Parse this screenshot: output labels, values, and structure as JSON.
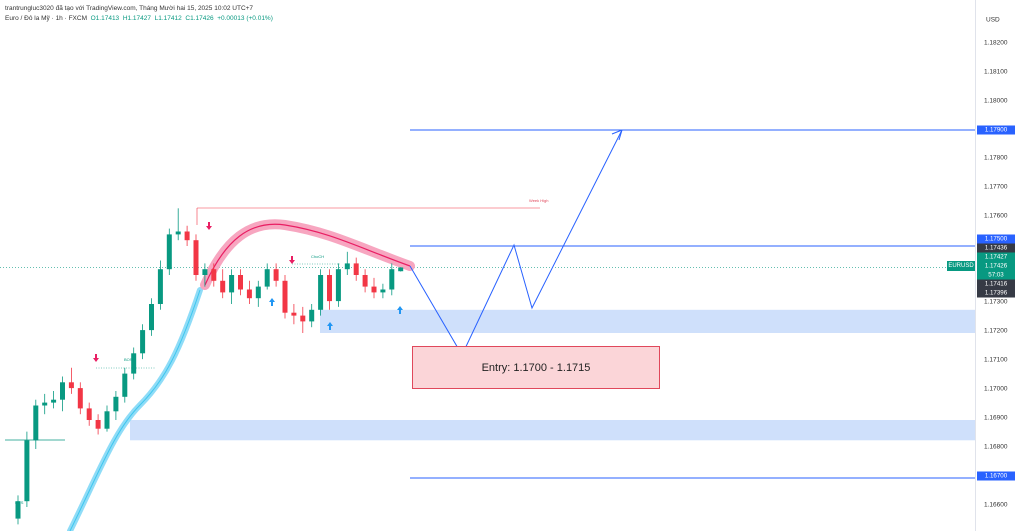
{
  "header": {
    "line1": "trantrungluc3020 đã tạo với TradingView.com, Tháng Mười hai 15, 2025 10:02 UTC+7",
    "symbol": "Euro / Đô la Mỹ · 1h · FXCM",
    "open": "O1.17413",
    "high": "H1.17427",
    "low": "L1.17412",
    "close": "C1.17426",
    "change": "+0.00013 (+0.01%)"
  },
  "axis": {
    "currency": "USD",
    "ticks": [
      "1.18200",
      "1.18100",
      "1.18000",
      "1.17800",
      "1.17700",
      "1.17600",
      "1.17300",
      "1.17200",
      "1.17100",
      "1.17000",
      "1.16900",
      "1.16800",
      "1.16600"
    ]
  },
  "price_tags": {
    "level_top": "1.17900",
    "level_mid": "1.17500",
    "p1": "1.17436",
    "p2": "1.17427",
    "p3": "1.17426",
    "countdown": "57:03",
    "p4": "1.17416",
    "p5": "1.17396",
    "level_bottom": "1.16700"
  },
  "symbol_label": "EURUSD",
  "entry": {
    "text": "Entry: 1.1700 - 1.1715"
  },
  "annotations": {
    "high_label": "Week High",
    "choch": "ChoCH",
    "bos1": "BOS",
    "bos2": "BOS"
  },
  "colors": {
    "bull": "#089981",
    "bear": "#f23645",
    "level_line": "#2962ff",
    "zone": "#cfe0fb",
    "entry_fill": "#fbd5d8",
    "entry_border": "#e0485b",
    "band_pink": "#f7a6c0",
    "band_blue": "#8fdcf7"
  },
  "chart_data": {
    "type": "candlestick",
    "series": [
      {
        "values": [
          [
            1.1656,
            1.1664,
            1.1654,
            1.1662
          ],
          [
            1.1662,
            1.1686,
            1.166,
            1.1683
          ],
          [
            1.1683,
            1.1697,
            1.168,
            1.1695
          ],
          [
            1.1695,
            1.1699,
            1.1692,
            1.1696
          ],
          [
            1.1696,
            1.17,
            1.1694,
            1.1697
          ],
          [
            1.1697,
            1.1705,
            1.1693,
            1.1703
          ],
          [
            1.1703,
            1.1708,
            1.1699,
            1.1701
          ],
          [
            1.1701,
            1.1703,
            1.1692,
            1.1694
          ],
          [
            1.1694,
            1.1696,
            1.1688,
            1.169
          ],
          [
            1.169,
            1.1692,
            1.1685,
            1.1687
          ],
          [
            1.1687,
            1.1695,
            1.1686,
            1.1693
          ],
          [
            1.1693,
            1.17,
            1.169,
            1.1698
          ],
          [
            1.1698,
            1.1708,
            1.1696,
            1.1706
          ],
          [
            1.1706,
            1.1715,
            1.1704,
            1.1713
          ],
          [
            1.1713,
            1.1723,
            1.1711,
            1.1721
          ],
          [
            1.1721,
            1.1732,
            1.1719,
            1.173
          ],
          [
            1.173,
            1.1745,
            1.1728,
            1.1742
          ],
          [
            1.1742,
            1.1756,
            1.174,
            1.1754
          ],
          [
            1.1754,
            1.1763,
            1.1752,
            1.1755
          ],
          [
            1.1755,
            1.1757,
            1.175,
            1.1752
          ],
          [
            1.1752,
            1.1754,
            1.1738,
            1.174
          ],
          [
            1.174,
            1.1744,
            1.1736,
            1.1742
          ],
          [
            1.1742,
            1.1744,
            1.1736,
            1.1738
          ],
          [
            1.1738,
            1.1742,
            1.1732,
            1.1734
          ],
          [
            1.1734,
            1.1742,
            1.173,
            1.174
          ],
          [
            1.174,
            1.1742,
            1.1733,
            1.1735
          ],
          [
            1.1735,
            1.1738,
            1.173,
            1.1732
          ],
          [
            1.1732,
            1.1738,
            1.1729,
            1.1736
          ],
          [
            1.1736,
            1.1744,
            1.1735,
            1.1742
          ],
          [
            1.1742,
            1.1744,
            1.1736,
            1.1738
          ],
          [
            1.1738,
            1.174,
            1.1725,
            1.1727
          ],
          [
            1.1727,
            1.173,
            1.1723,
            1.1726
          ],
          [
            1.1726,
            1.1729,
            1.172,
            1.1724
          ],
          [
            1.1724,
            1.173,
            1.1722,
            1.1728
          ],
          [
            1.1728,
            1.1742,
            1.1726,
            1.174
          ],
          [
            1.174,
            1.1742,
            1.1728,
            1.1731
          ],
          [
            1.1731,
            1.1744,
            1.1729,
            1.1742
          ],
          [
            1.1742,
            1.1748,
            1.174,
            1.1744
          ],
          [
            1.1744,
            1.1746,
            1.1738,
            1.174
          ],
          [
            1.174,
            1.1742,
            1.1734,
            1.1736
          ],
          [
            1.1736,
            1.1739,
            1.1732,
            1.1734
          ],
          [
            1.1734,
            1.1737,
            1.1732,
            1.1735
          ],
          [
            1.1735,
            1.1744,
            1.1733,
            1.1742
          ],
          [
            1.17413,
            1.17427,
            1.17412,
            1.17426
          ]
        ]
      }
    ],
    "levels": [
      1.179,
      1.175,
      1.167
    ],
    "zones": [
      [
        1.172,
        1.1728
      ],
      [
        1.1683,
        1.169
      ]
    ],
    "ylim": [
      1.165,
      1.1828
    ]
  }
}
